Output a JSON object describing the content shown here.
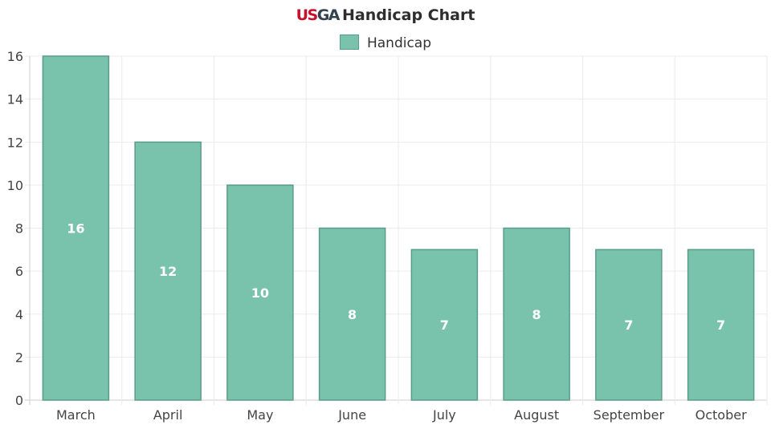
{
  "title": {
    "logo": "USGA",
    "text": "Handicap Chart"
  },
  "chart_data": {
    "type": "bar",
    "title": "Handicap Chart",
    "categories": [
      "March",
      "April",
      "May",
      "June",
      "July",
      "August",
      "September",
      "October"
    ],
    "series": [
      {
        "name": "Handicap",
        "values": [
          16,
          12,
          10,
          8,
          7,
          8,
          7,
          7
        ]
      }
    ],
    "ylim": [
      0,
      16
    ],
    "yticks": [
      "0",
      "2",
      "4",
      "6",
      "8",
      "10",
      "12",
      "14",
      "16"
    ],
    "grid": true,
    "legend": "top",
    "data_labels": true,
    "colors": {
      "bar": "#79c3ad",
      "bar_border": "#5a9c88",
      "label": "#ffffff"
    }
  }
}
